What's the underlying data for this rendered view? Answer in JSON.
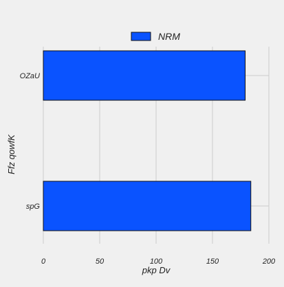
{
  "chart_data": {
    "type": "bar",
    "orientation": "horizontal",
    "categories": [
      "OZaU",
      "spG"
    ],
    "series": [
      {
        "name": "NRM",
        "values": [
          179,
          184
        ]
      }
    ],
    "xlabel": "pkp Dv",
    "ylabel": "Ffz  qowfK",
    "xlim": [
      0,
      200
    ],
    "xticks": [
      0,
      50,
      100,
      150,
      200
    ],
    "grid": true,
    "legend": "top-center",
    "colors": {
      "bar_fill": "#0a53ff",
      "bar_edge": "#111111",
      "grid": "#cccccc",
      "background": "#f0f0f0"
    }
  }
}
